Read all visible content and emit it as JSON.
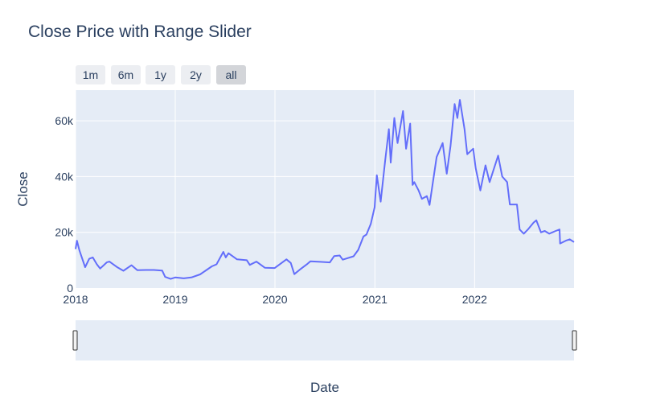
{
  "title": "Close Price with Range Slider",
  "buttons": [
    {
      "label": "1m",
      "active": false
    },
    {
      "label": "6m",
      "active": false
    },
    {
      "label": "1y",
      "active": false
    },
    {
      "label": "2y",
      "active": false
    },
    {
      "label": "all",
      "active": true
    }
  ],
  "colors": {
    "line": "#636efa",
    "plot_bg": "#e5ecf6",
    "grid": "#ffffff",
    "text": "#2a3f5f"
  },
  "chart_data": {
    "type": "line",
    "title": "Close Price with Range Slider",
    "xlabel": "Date",
    "ylabel": "Close",
    "xlim": [
      "2018-01-01",
      "2022-12-31"
    ],
    "ylim": [
      0,
      71000
    ],
    "y_ticks": [
      0,
      20000,
      40000,
      60000
    ],
    "y_tick_labels": [
      "0",
      "20k",
      "40k",
      "60k"
    ],
    "x_ticks": [
      "2018-01-01",
      "2019-01-01",
      "2020-01-01",
      "2021-01-01",
      "2022-01-01"
    ],
    "x_tick_labels": [
      "2018",
      "2019",
      "2020",
      "2021",
      "2022"
    ],
    "grid": true,
    "range_slider": true,
    "series": [
      {
        "color": "#636efa",
        "points": [
          [
            "2018-01-01",
            14000
          ],
          [
            "2018-01-06",
            17000
          ],
          [
            "2018-01-15",
            13500
          ],
          [
            "2018-02-05",
            7500
          ],
          [
            "2018-02-20",
            10500
          ],
          [
            "2018-03-05",
            11000
          ],
          [
            "2018-03-20",
            8500
          ],
          [
            "2018-04-01",
            7000
          ],
          [
            "2018-04-25",
            9200
          ],
          [
            "2018-05-05",
            9500
          ],
          [
            "2018-06-01",
            7600
          ],
          [
            "2018-06-25",
            6200
          ],
          [
            "2018-07-25",
            8200
          ],
          [
            "2018-08-15",
            6400
          ],
          [
            "2018-09-15",
            6500
          ],
          [
            "2018-10-15",
            6500
          ],
          [
            "2018-11-14",
            6300
          ],
          [
            "2018-11-25",
            4000
          ],
          [
            "2018-12-15",
            3300
          ],
          [
            "2019-01-01",
            3800
          ],
          [
            "2019-02-01",
            3500
          ],
          [
            "2019-03-01",
            3800
          ],
          [
            "2019-04-02",
            4900
          ],
          [
            "2019-05-15",
            7800
          ],
          [
            "2019-06-01",
            8500
          ],
          [
            "2019-06-26",
            13000
          ],
          [
            "2019-07-05",
            11000
          ],
          [
            "2019-07-15",
            12500
          ],
          [
            "2019-08-15",
            10300
          ],
          [
            "2019-09-20",
            10000
          ],
          [
            "2019-10-01",
            8300
          ],
          [
            "2019-10-25",
            9500
          ],
          [
            "2019-11-25",
            7300
          ],
          [
            "2019-12-31",
            7200
          ],
          [
            "2020-02-12",
            10300
          ],
          [
            "2020-02-28",
            9000
          ],
          [
            "2020-03-12",
            5000
          ],
          [
            "2020-04-01",
            6600
          ],
          [
            "2020-04-29",
            8700
          ],
          [
            "2020-05-10",
            9600
          ],
          [
            "2020-06-15",
            9400
          ],
          [
            "2020-07-20",
            9200
          ],
          [
            "2020-08-05",
            11500
          ],
          [
            "2020-08-25",
            11700
          ],
          [
            "2020-09-05",
            10200
          ],
          [
            "2020-10-15",
            11400
          ],
          [
            "2020-11-01",
            13700
          ],
          [
            "2020-11-20",
            18500
          ],
          [
            "2020-12-01",
            19200
          ],
          [
            "2020-12-17",
            23000
          ],
          [
            "2020-12-31",
            29000
          ],
          [
            "2021-01-08",
            40500
          ],
          [
            "2021-01-22",
            31000
          ],
          [
            "2021-02-08",
            46000
          ],
          [
            "2021-02-21",
            57000
          ],
          [
            "2021-02-28",
            45000
          ],
          [
            "2021-03-13",
            61000
          ],
          [
            "2021-03-25",
            52000
          ],
          [
            "2021-04-14",
            63500
          ],
          [
            "2021-04-25",
            50000
          ],
          [
            "2021-05-10",
            59000
          ],
          [
            "2021-05-19",
            37000
          ],
          [
            "2021-05-25",
            38000
          ],
          [
            "2021-06-10",
            35000
          ],
          [
            "2021-06-22",
            32000
          ],
          [
            "2021-07-10",
            33000
          ],
          [
            "2021-07-20",
            29800
          ],
          [
            "2021-08-15",
            47000
          ],
          [
            "2021-09-06",
            52000
          ],
          [
            "2021-09-21",
            41000
          ],
          [
            "2021-10-05",
            51000
          ],
          [
            "2021-10-20",
            66000
          ],
          [
            "2021-10-30",
            61000
          ],
          [
            "2021-11-08",
            67500
          ],
          [
            "2021-11-25",
            57000
          ],
          [
            "2021-12-05",
            48000
          ],
          [
            "2021-12-27",
            50000
          ],
          [
            "2022-01-05",
            43000
          ],
          [
            "2022-01-22",
            35000
          ],
          [
            "2022-02-10",
            44000
          ],
          [
            "2022-02-25",
            38000
          ],
          [
            "2022-03-28",
            47500
          ],
          [
            "2022-04-12",
            40000
          ],
          [
            "2022-04-30",
            38000
          ],
          [
            "2022-05-10",
            30000
          ],
          [
            "2022-06-05",
            30000
          ],
          [
            "2022-06-15",
            21000
          ],
          [
            "2022-06-30",
            19500
          ],
          [
            "2022-07-15",
            21000
          ],
          [
            "2022-08-05",
            23500
          ],
          [
            "2022-08-15",
            24300
          ],
          [
            "2022-09-01",
            20000
          ],
          [
            "2022-09-15",
            20500
          ],
          [
            "2022-10-01",
            19500
          ],
          [
            "2022-10-25",
            20500
          ],
          [
            "2022-11-08",
            21000
          ],
          [
            "2022-11-10",
            16000
          ],
          [
            "2022-12-01",
            17000
          ],
          [
            "2022-12-15",
            17500
          ],
          [
            "2022-12-31",
            16500
          ]
        ]
      }
    ]
  }
}
